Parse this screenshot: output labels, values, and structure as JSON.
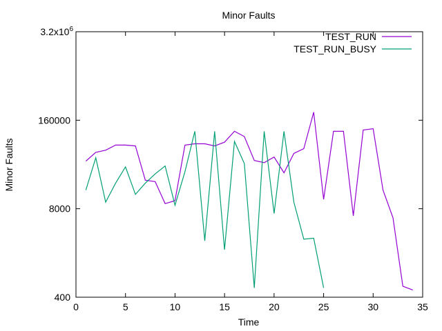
{
  "chart_data": {
    "type": "line",
    "title": "Minor Faults",
    "xlabel": "Time",
    "ylabel": "Minor Faults",
    "xlim": [
      0,
      35
    ],
    "ylim": [
      400,
      3200000
    ],
    "yscale": "log",
    "grid": false,
    "legend_position": "top-right",
    "x_ticks": [
      {
        "value": 0,
        "label": "0"
      },
      {
        "value": 5,
        "label": "5"
      },
      {
        "value": 10,
        "label": "10"
      },
      {
        "value": 15,
        "label": "15"
      },
      {
        "value": 20,
        "label": "20"
      },
      {
        "value": 25,
        "label": "25"
      },
      {
        "value": 30,
        "label": "30"
      },
      {
        "value": 35,
        "label": "35"
      }
    ],
    "y_ticks": [
      {
        "value": 400,
        "label": "400"
      },
      {
        "value": 8000,
        "label": "8000"
      },
      {
        "value": 160000,
        "label": "160000"
      },
      {
        "value": 3200000,
        "label": "3.2x10",
        "sup": "6"
      }
    ],
    "series": [
      {
        "name": "TEST_RUN",
        "color": "#9400d3",
        "x": [
          1,
          2,
          3,
          4,
          5,
          6,
          7,
          8,
          9,
          10,
          11,
          12,
          13,
          14,
          15,
          16,
          17,
          18,
          19,
          20,
          21,
          22,
          23,
          24,
          25,
          26,
          27,
          28,
          29,
          30,
          31,
          32,
          33,
          34
        ],
        "values": [
          40000,
          54000,
          58000,
          69000,
          69000,
          67000,
          21000,
          20000,
          9500,
          10500,
          69000,
          72000,
          72000,
          67000,
          76000,
          110000,
          92000,
          41000,
          38000,
          46000,
          27000,
          52000,
          61000,
          210000,
          11000,
          110000,
          110000,
          6300,
          115000,
          120000,
          15000,
          5900,
          580,
          510
        ]
      },
      {
        "name": "TEST_RUN_BUSY",
        "color": "#009e73",
        "x": [
          1,
          2,
          3,
          4,
          5,
          6,
          7,
          8,
          9,
          10,
          11,
          12,
          13,
          14,
          15,
          16,
          17,
          18,
          19,
          20,
          21,
          22,
          23,
          24,
          25
        ],
        "values": [
          15000,
          45000,
          10000,
          19000,
          33000,
          13000,
          19000,
          26000,
          34000,
          9000,
          28000,
          110000,
          2700,
          110000,
          2000,
          78000,
          37000,
          550,
          110000,
          6800,
          110000,
          10000,
          2850,
          2950,
          550
        ]
      }
    ]
  }
}
